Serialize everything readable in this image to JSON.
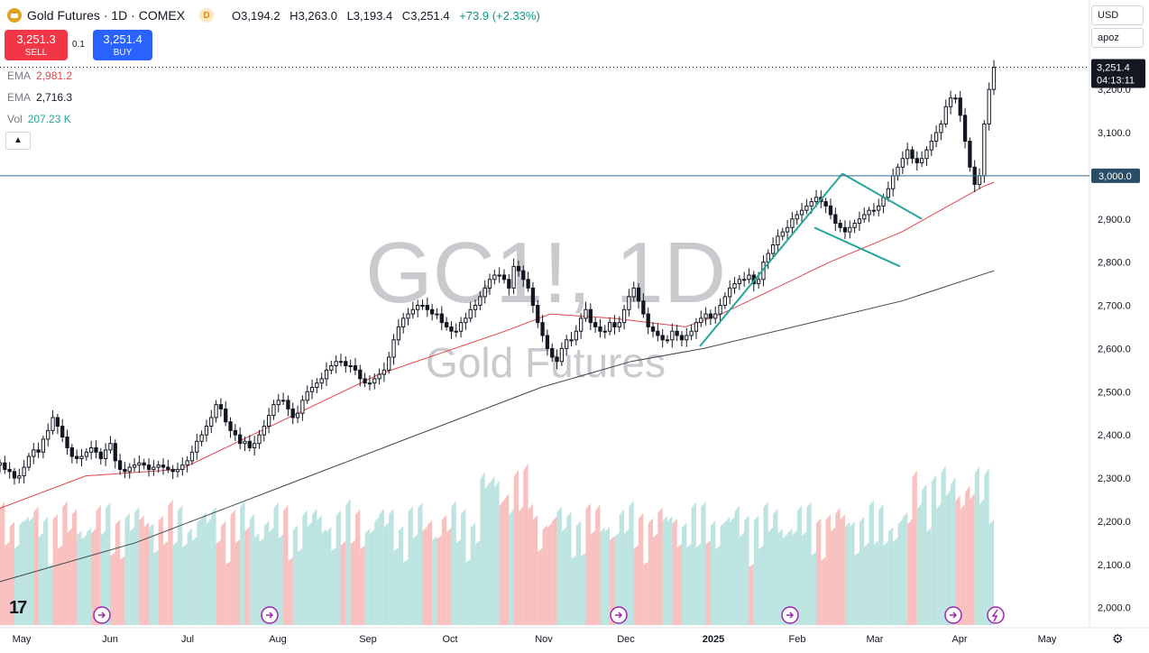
{
  "header": {
    "title": "Gold Futures · 1D · COMEX",
    "badge": "D",
    "ohlc": {
      "o_label": "O",
      "o": "3,194.2",
      "h_label": "H",
      "h": "3,263.0",
      "l_label": "L",
      "l": "3,193.4",
      "c_label": "C",
      "c": "3,251.4",
      "change": "+73.9 (+2.33%)"
    }
  },
  "trade": {
    "sell_price": "3,251.3",
    "sell_label": "SELL",
    "spread": "0.1",
    "buy_price": "3,251.4",
    "buy_label": "BUY"
  },
  "indicators": [
    {
      "name": "EMA",
      "value": "2,981.2",
      "color": "#e0464b"
    },
    {
      "name": "EMA",
      "value": "2,716.3",
      "color": "#434651"
    },
    {
      "name": "Vol",
      "value": "207.23 K",
      "color": "#26a69a"
    }
  ],
  "controls": {
    "currency": "USD",
    "scale": "apoz"
  },
  "watermark": {
    "symbol": "GC1!, 1D",
    "name": "Gold Futures"
  },
  "colors": {
    "up": "#089981",
    "down": "#131722",
    "ema50": "#e0464b",
    "ema200": "#434651",
    "vol_up": "#b2dfdb",
    "vol_down": "#f7b6b4",
    "trend": "#26a69a"
  },
  "chart_data": {
    "type": "candlestick",
    "y_axis": {
      "range": [
        1970,
        3320
      ],
      "ticks": [
        2000,
        2100,
        2200,
        2300,
        2400,
        2500,
        2600,
        2700,
        2800,
        2900,
        3000,
        3100,
        3200
      ],
      "tick_labels": [
        "2,000.0",
        "2,100.0",
        "2,200.0",
        "2,300.0",
        "2,400.0",
        "2,500.0",
        "2,600.0",
        "2,700.0",
        "2,800.0",
        "2,900.0",
        "3,000.0",
        "3,100.0",
        "3,200.0"
      ]
    },
    "x_axis": {
      "labels": [
        "May",
        "Jun",
        "Jul",
        "Aug",
        "Sep",
        "Oct",
        "Nov",
        "Dec",
        "2025",
        "Feb",
        "Mar",
        "Apr",
        "May"
      ]
    },
    "last_price": {
      "value": 3251.4,
      "label": "3,251.4",
      "countdown": "04:13:11"
    },
    "horizontal_line": {
      "value": 3000,
      "label": "3,000.0"
    },
    "close_series": [
      2335,
      2320,
      2315,
      2300,
      2305,
      2325,
      2350,
      2365,
      2360,
      2390,
      2410,
      2440,
      2420,
      2395,
      2370,
      2350,
      2345,
      2350,
      2360,
      2370,
      2360,
      2345,
      2365,
      2380,
      2340,
      2320,
      2315,
      2325,
      2330,
      2335,
      2330,
      2320,
      2325,
      2330,
      2325,
      2320,
      2315,
      2320,
      2330,
      2340,
      2360,
      2385,
      2400,
      2420,
      2440,
      2470,
      2460,
      2430,
      2410,
      2400,
      2380,
      2385,
      2370,
      2380,
      2400,
      2420,
      2445,
      2470,
      2480,
      2480,
      2460,
      2440,
      2450,
      2480,
      2500,
      2510,
      2520,
      2530,
      2550,
      2560,
      2570,
      2570,
      2560,
      2560,
      2550,
      2530,
      2520,
      2520,
      2530,
      2540,
      2550,
      2580,
      2620,
      2650,
      2670,
      2680,
      2690,
      2700,
      2700,
      2690,
      2680,
      2680,
      2660,
      2650,
      2640,
      2640,
      2660,
      2670,
      2690,
      2700,
      2720,
      2740,
      2760,
      2770,
      2770,
      2760,
      2740,
      2790,
      2780,
      2760,
      2740,
      2700,
      2660,
      2630,
      2600,
      2580,
      2570,
      2600,
      2620,
      2620,
      2640,
      2670,
      2690,
      2660,
      2650,
      2640,
      2640,
      2660,
      2650,
      2660,
      2690,
      2720,
      2740,
      2710,
      2680,
      2650,
      2640,
      2630,
      2620,
      2620,
      2640,
      2630,
      2620,
      2630,
      2640,
      2660,
      2670,
      2680,
      2670,
      2680,
      2700,
      2720,
      2740,
      2750,
      2760,
      2760,
      2770,
      2750,
      2760,
      2800,
      2820,
      2840,
      2860,
      2870,
      2880,
      2900,
      2910,
      2920,
      2930,
      2940,
      2950,
      2940,
      2930,
      2910,
      2890,
      2880,
      2870,
      2880,
      2890,
      2900,
      2910,
      2920,
      2920,
      2930,
      2950,
      2970,
      3000,
      3020,
      3040,
      3060,
      3040,
      3030,
      3040,
      3060,
      3080,
      3100,
      3120,
      3160,
      3180,
      3180,
      3140,
      3080,
      3020,
      2980,
      3000,
      3120,
      3200,
      3251
    ],
    "ema50_points": [
      [
        0,
        2230
      ],
      [
        95,
        2305
      ],
      [
        200,
        2320
      ],
      [
        300,
        2420
      ],
      [
        420,
        2540
      ],
      [
        560,
        2640
      ],
      [
        610,
        2680
      ],
      [
        680,
        2670
      ],
      [
        760,
        2650
      ],
      [
        800,
        2680
      ],
      [
        860,
        2740
      ],
      [
        920,
        2800
      ],
      [
        1000,
        2870
      ],
      [
        1060,
        2940
      ],
      [
        1090,
        2975
      ],
      [
        1102,
        2985
      ]
    ],
    "ema200_points": [
      [
        0,
        2060
      ],
      [
        150,
        2150
      ],
      [
        300,
        2270
      ],
      [
        450,
        2390
      ],
      [
        600,
        2510
      ],
      [
        700,
        2570
      ],
      [
        780,
        2600
      ],
      [
        900,
        2660
      ],
      [
        1000,
        2710
      ],
      [
        1102,
        2780
      ]
    ],
    "trendlines": [
      [
        [
          776,
          2605
        ],
        [
          934,
          3005
        ]
      ],
      [
        [
          934,
          3005
        ],
        [
          1022,
          2900
        ]
      ],
      [
        [
          903,
          2880
        ],
        [
          998,
          2790
        ]
      ]
    ]
  }
}
